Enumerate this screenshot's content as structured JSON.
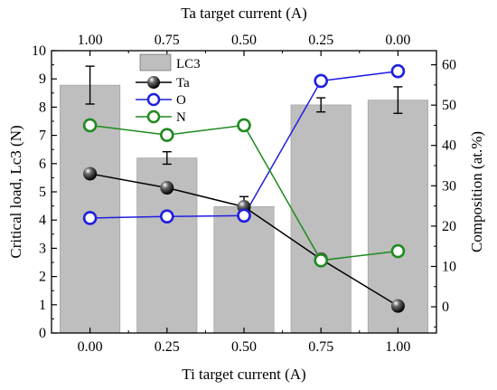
{
  "chart_data": {
    "type": "bar+line",
    "bottom_axis": {
      "label": "Ti target current (A)",
      "tick_labels": [
        "0.00",
        "0.25",
        "0.50",
        "0.75",
        "1.00"
      ]
    },
    "top_axis": {
      "label": "Ta target current (A)",
      "tick_labels": [
        "1.00",
        "0.75",
        "0.50",
        "0.25",
        "0.00"
      ]
    },
    "left_axis": {
      "label": "Critical load, Lc3 (N)",
      "ylim": [
        0,
        10
      ],
      "tick_labels": [
        "0",
        "1",
        "2",
        "3",
        "4",
        "5",
        "6",
        "7",
        "8",
        "9",
        "10"
      ]
    },
    "right_axis": {
      "label": "Composition (at.%)",
      "ylim": [
        -6.5,
        63.5
      ],
      "tick_labels": [
        "0",
        "10",
        "20",
        "30",
        "40",
        "50",
        "60"
      ],
      "tick_values": [
        0,
        10,
        20,
        30,
        40,
        50,
        60
      ]
    },
    "bars": {
      "name": "LC3",
      "axis": "left",
      "color": "#bebebe",
      "values": [
        8.78,
        6.2,
        4.48,
        8.08,
        8.25
      ],
      "errors": [
        0.67,
        0.22,
        0.35,
        0.25,
        0.47
      ]
    },
    "series": [
      {
        "name": "Ta",
        "axis": "right",
        "color": "#000000",
        "marker": "filled-sphere",
        "values": [
          33.0,
          29.5,
          24.8,
          11.8,
          0.2
        ]
      },
      {
        "name": "O",
        "axis": "right",
        "color": "#1f1fe0",
        "marker": "open-circle",
        "values": [
          22.0,
          22.4,
          22.6,
          56.0,
          58.4
        ]
      },
      {
        "name": "N",
        "axis": "right",
        "color": "#1f8a1f",
        "marker": "open-circle",
        "values": [
          45.0,
          42.6,
          45.0,
          11.5,
          13.8
        ]
      }
    ],
    "legend": {
      "placement": "top-center"
    }
  }
}
